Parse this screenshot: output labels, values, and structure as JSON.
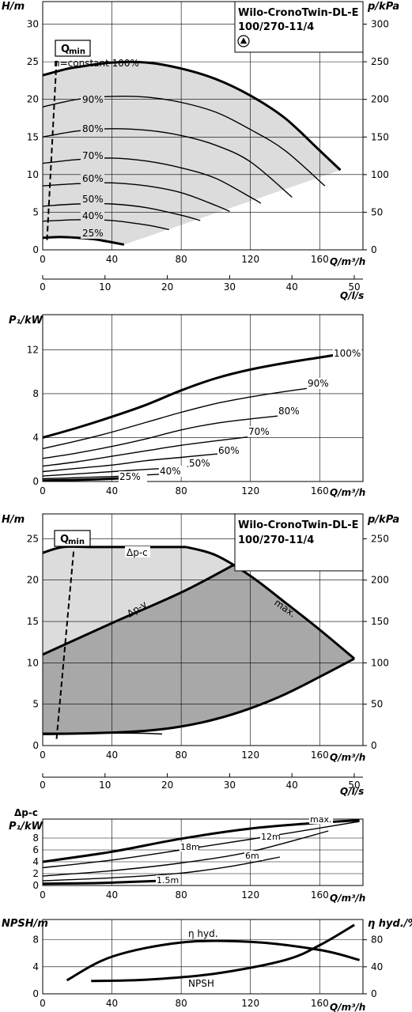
{
  "colors": {
    "light": "#dcdcdc",
    "dark": "#a8a8a8",
    "grid": "#000000",
    "curve": "#000000"
  },
  "pump": {
    "line1": "Wilo-CronoTwin-DL-E",
    "line2": "100/270-11/4",
    "icon": "warning-triangle-icon"
  },
  "chart_data": [
    {
      "id": "ch1",
      "type": "line",
      "title": "",
      "ylabel": "H/m",
      "xlabel": "Q/m³/h",
      "ylabel_right": "p/kPa",
      "ylim": [
        0,
        33
      ],
      "xlim": [
        0,
        185
      ],
      "y_ticks": [
        0,
        5,
        10,
        15,
        20,
        25,
        30
      ],
      "x_ticks": [
        0,
        40,
        80,
        120,
        160
      ],
      "right_ticks": [
        0,
        50,
        100,
        150,
        200,
        250,
        300
      ],
      "grid": true,
      "qmin": {
        "label": "Q",
        "sub": "min",
        "x": [
          2.5,
          8
        ],
        "y": [
          1.3,
          25.2
        ]
      },
      "series": [
        {
          "name": "n=constant 100%",
          "x": [
            0,
            13,
            20,
            40,
            60,
            80,
            100,
            120,
            140,
            160,
            172
          ],
          "y": [
            23.2,
            24.0,
            24.3,
            24.9,
            24.9,
            24.1,
            22.7,
            20.5,
            17.5,
            13.2,
            10.6
          ]
        },
        {
          "name": "90%",
          "x": [
            0,
            20,
            40,
            60,
            80,
            100,
            120,
            140,
            163
          ],
          "y": [
            19.0,
            20.0,
            20.4,
            20.3,
            19.6,
            18.3,
            16.0,
            13.2,
            8.5
          ]
        },
        {
          "name": "80%",
          "x": [
            0,
            20,
            40,
            60,
            80,
            100,
            120,
            144
          ],
          "y": [
            15.0,
            15.8,
            16.1,
            15.9,
            15.2,
            13.9,
            11.7,
            7.0
          ]
        },
        {
          "name": "70%",
          "x": [
            0,
            20,
            40,
            60,
            80,
            100,
            120,
            126
          ],
          "y": [
            11.5,
            12.0,
            12.2,
            11.8,
            10.9,
            9.5,
            7.0,
            6.2
          ]
        },
        {
          "name": "60%",
          "x": [
            0,
            20,
            40,
            60,
            80,
            100,
            108
          ],
          "y": [
            8.5,
            8.8,
            8.9,
            8.5,
            7.6,
            5.9,
            5.1
          ]
        },
        {
          "name": "50%",
          "x": [
            0,
            20,
            40,
            60,
            80,
            91
          ],
          "y": [
            5.8,
            6.1,
            6.1,
            5.6,
            4.6,
            3.9
          ]
        },
        {
          "name": "40%",
          "x": [
            0,
            20,
            40,
            60,
            73
          ],
          "y": [
            3.8,
            4.0,
            3.9,
            3.3,
            2.7
          ]
        },
        {
          "name": "25%",
          "x": [
            0,
            10,
            20,
            30,
            40,
            47
          ],
          "y": [
            1.6,
            1.7,
            1.6,
            1.4,
            1.0,
            0.7
          ]
        }
      ]
    },
    {
      "id": "ax1",
      "type": "axis",
      "xlabel": "Q/l/s",
      "xlim": [
        0,
        51.4
      ],
      "x_ticks": [
        0,
        10,
        20,
        30,
        40,
        50
      ]
    },
    {
      "id": "ch2",
      "type": "line",
      "title": "",
      "ylabel": "P₁/kW",
      "xlabel": "Q/m³/h",
      "ylim": [
        0,
        15.2
      ],
      "xlim": [
        0,
        185
      ],
      "y_ticks": [
        0,
        4,
        8,
        12
      ],
      "x_ticks": [
        0,
        40,
        80,
        120,
        160
      ],
      "grid": true,
      "series": [
        {
          "name": "100%",
          "x": [
            0,
            20,
            40,
            60,
            80,
            100,
            120,
            140,
            160,
            172
          ],
          "y": [
            4.0,
            4.9,
            5.9,
            7.0,
            8.3,
            9.4,
            10.2,
            10.8,
            11.3,
            11.6
          ]
        },
        {
          "name": "90%",
          "x": [
            0,
            20,
            40,
            60,
            80,
            100,
            120,
            140,
            163
          ],
          "y": [
            3.0,
            3.7,
            4.5,
            5.4,
            6.3,
            7.1,
            7.7,
            8.2,
            8.7
          ]
        },
        {
          "name": "80%",
          "x": [
            0,
            20,
            40,
            60,
            80,
            100,
            120,
            144
          ],
          "y": [
            2.1,
            2.6,
            3.2,
            3.9,
            4.7,
            5.3,
            5.7,
            6.1
          ]
        },
        {
          "name": "70%",
          "x": [
            0,
            20,
            40,
            60,
            80,
            100,
            126
          ],
          "y": [
            1.4,
            1.8,
            2.3,
            2.8,
            3.3,
            3.7,
            4.2
          ]
        },
        {
          "name": "60%",
          "x": [
            0,
            20,
            40,
            60,
            80,
            100,
            108
          ],
          "y": [
            0.9,
            1.2,
            1.5,
            1.9,
            2.2,
            2.5,
            2.6
          ]
        },
        {
          "name": "50%",
          "x": [
            0,
            20,
            40,
            60,
            80,
            91
          ],
          "y": [
            0.5,
            0.7,
            0.9,
            1.1,
            1.3,
            1.5
          ]
        },
        {
          "name": "40%",
          "x": [
            0,
            20,
            40,
            60,
            73
          ],
          "y": [
            0.25,
            0.35,
            0.45,
            0.6,
            0.7
          ]
        },
        {
          "name": "25%",
          "x": [
            0,
            20,
            40,
            47
          ],
          "y": [
            0.08,
            0.15,
            0.25,
            0.3
          ]
        }
      ]
    },
    {
      "id": "ch3",
      "type": "area",
      "title": "",
      "ylabel": "H/m",
      "xlabel": "Q/m³/h",
      "ylabel_right": "p/kPa",
      "ylim": [
        0,
        28
      ],
      "xlim": [
        0,
        185
      ],
      "y_ticks": [
        0,
        5,
        10,
        15,
        20,
        25
      ],
      "x_ticks": [
        0,
        40,
        80,
        120,
        160
      ],
      "right_ticks": [
        0,
        50,
        100,
        150,
        200,
        250
      ],
      "grid": true,
      "qmin": {
        "label": "Q",
        "sub": "min",
        "x": [
          8,
          18
        ],
        "y": [
          0.8,
          23.8
        ]
      },
      "labels": {
        "dp_c": "Δp-c",
        "dp_v": "Δp-v",
        "max": "max."
      },
      "dp_c": {
        "x": [
          0,
          12,
          30,
          60,
          83
        ],
        "y": [
          23.3,
          24.0,
          24.0,
          24.0,
          24.0
        ]
      },
      "dp_v": {
        "x": [
          0,
          40,
          80,
          110
        ],
        "y": [
          11.0,
          14.8,
          18.5,
          21.8
        ]
      },
      "max": {
        "x": [
          83,
          100,
          120,
          140,
          160,
          180
        ],
        "y": [
          24.0,
          23.0,
          20.5,
          17.3,
          14.0,
          10.5
        ]
      },
      "min_curve": {
        "x": [
          0,
          30,
          60,
          80,
          100,
          120,
          140,
          160,
          180
        ],
        "y": [
          1.4,
          1.5,
          1.8,
          2.3,
          3.2,
          4.5,
          6.2,
          8.3,
          10.5
        ]
      },
      "min_return": {
        "x": [
          0,
          50,
          69
        ],
        "y": [
          1.5,
          1.5,
          1.4
        ]
      }
    },
    {
      "id": "ax2",
      "type": "axis",
      "xlabel": "Q/l/s",
      "xlim": [
        0,
        51.4
      ],
      "x_ticks": [
        0,
        10,
        20,
        30,
        40,
        50
      ]
    },
    {
      "id": "ch4",
      "type": "line",
      "title": "",
      "ylabel": "Δp-c",
      "ylabel2": "P₁/kW",
      "xlabel": "Q/m³/h",
      "ylim": [
        0,
        11.2
      ],
      "xlim": [
        0,
        185
      ],
      "y_ticks": [
        0,
        2,
        4,
        6,
        8
      ],
      "x_ticks": [
        0,
        40,
        80,
        120,
        160
      ],
      "grid": true,
      "series": [
        {
          "name": "max.",
          "x": [
            0,
            40,
            80,
            120,
            160,
            183
          ],
          "y": [
            4.0,
            5.7,
            7.9,
            9.6,
            10.6,
            11.0
          ]
        },
        {
          "name": "18m",
          "x": [
            0,
            40,
            80,
            120,
            160,
            183
          ],
          "y": [
            3.0,
            4.3,
            6.0,
            7.8,
            9.7,
            10.8
          ]
        },
        {
          "name": "12m",
          "x": [
            0,
            40,
            80,
            120,
            165
          ],
          "y": [
            1.6,
            2.5,
            3.8,
            5.7,
            9.2
          ]
        },
        {
          "name": "6m",
          "x": [
            0,
            40,
            80,
            110,
            137
          ],
          "y": [
            0.8,
            1.3,
            2.1,
            3.3,
            4.8
          ]
        },
        {
          "name": "1.5m",
          "x": [
            0,
            30,
            50,
            69
          ],
          "y": [
            0.3,
            0.4,
            0.6,
            0.8
          ]
        }
      ]
    },
    {
      "id": "ch5",
      "type": "line",
      "title": "",
      "ylabel": "NPSH/m",
      "xlabel": "Q/m³/h",
      "ylabel_right": "η hyd./%",
      "ylim": [
        0,
        11
      ],
      "xlim": [
        0,
        185
      ],
      "y_ticks": [
        0,
        4,
        8
      ],
      "x_ticks": [
        0,
        40,
        80,
        120,
        160
      ],
      "right_ticks": [
        0,
        40,
        80
      ],
      "right_factor": 10,
      "grid": true,
      "series": [
        {
          "name": "η hyd.",
          "x": [
            14,
            40,
            80,
            120,
            160,
            183
          ],
          "y": [
            2.0,
            5.5,
            7.6,
            7.7,
            6.5,
            5.0
          ]
        },
        {
          "name": "NPSH",
          "x": [
            28,
            60,
            100,
            140,
            160,
            180
          ],
          "y": [
            1.9,
            2.1,
            3.0,
            5.0,
            7.2,
            10.2
          ]
        }
      ]
    }
  ]
}
